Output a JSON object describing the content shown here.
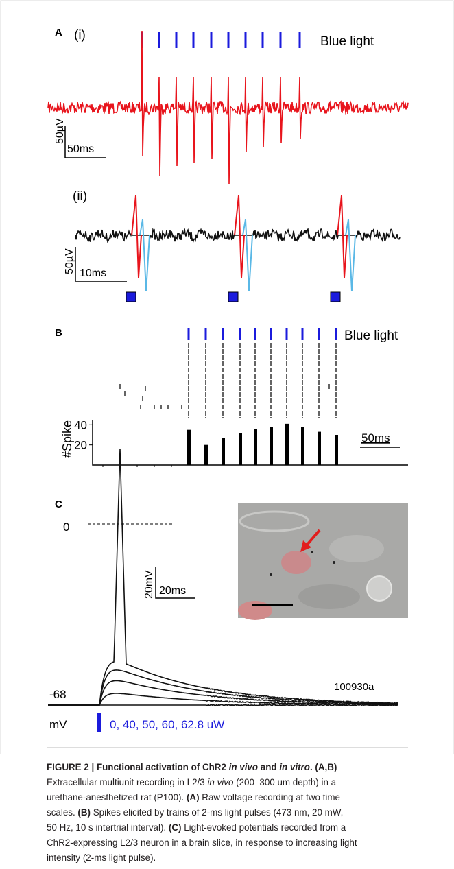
{
  "figure": {
    "panel_a": {
      "label": "A",
      "sub_i": "(i)",
      "sub_ii": "(ii)",
      "light_label": "Blue light",
      "scale_i": {
        "v": "50µV",
        "t": "50ms"
      },
      "scale_ii": {
        "v": "50µV",
        "t": "10ms"
      }
    },
    "panel_b": {
      "label": "B",
      "light_label": "Blue light",
      "scale_t": "50ms",
      "histogram": {
        "ylabel": "#Spike",
        "ylim": [
          0,
          45
        ],
        "yticks": [
          20,
          40
        ],
        "values": [
          35,
          20,
          27,
          32,
          36,
          38,
          41,
          38,
          33,
          30
        ]
      }
    },
    "panel_c": {
      "label": "C",
      "zero": "0",
      "rest": "-68",
      "unit": "mV",
      "scale": {
        "v": "20mV",
        "t": "20ms"
      },
      "cell_id": "100930a",
      "intensities": "0, 40, 50, 60, 62.8 uW"
    }
  },
  "caption": {
    "lines": [
      [
        "FIGURE 2 | Functional activation of ChR2 ",
        "in vivo",
        " and ",
        "in vitro",
        ". (A,B)"
      ],
      [
        "Extracellular multiunit recording in L2/3 ",
        "in vivo",
        " (200–300 um depth) in a"
      ],
      [
        "urethane-anesthetized rat (P100). ",
        "(A)",
        " Raw voltage recording at two time"
      ],
      [
        "scales. ",
        "(B)",
        " Spikes elicited by trains of 2-ms light pulses (473 nm, 20 mW,"
      ],
      [
        "50 Hz, 10 s intertrial interval). ",
        "(C)",
        " Light-evoked potentials recorded from a"
      ],
      [
        "ChR2-expressing L2/3 neuron in a brain slice, in response to increasing light"
      ],
      [
        "intensity (2-ms light pulse)."
      ]
    ]
  }
}
